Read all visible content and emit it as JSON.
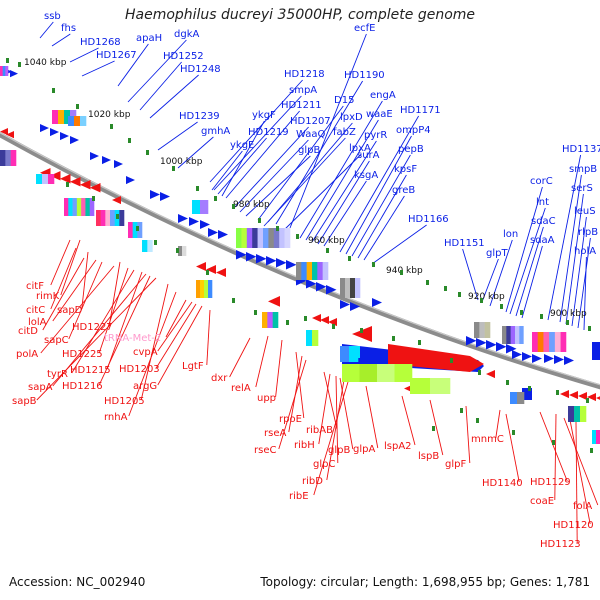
{
  "title": "Haemophilus ducreyi 35000HP, complete genome",
  "footer": {
    "accession": "Accession: NC_002940",
    "topology": "Topology: circular; Length: 1,698,955 bp; Genes: 1,781"
  },
  "colors": {
    "forward": "#0a1fe6",
    "reverse": "#ef1212",
    "backbone": "#888888",
    "tick": "#2a8a2a",
    "trna": "#ff99cc"
  },
  "kbp_ticks": [
    "1040 kbp",
    "1020 kbp",
    "1000 kbp",
    "980 kbp",
    "960 kbp",
    "940 kbp",
    "920 kbp",
    "900 kbp"
  ],
  "forward_labels": [
    "ssb",
    "fhs",
    "HD1268",
    "HD1267",
    "apaH",
    "dgkA",
    "HD1252",
    "HD1248",
    "HD1239",
    "gmhA",
    "HD1218",
    "smpA",
    "ykgF",
    "HD1211",
    "HD1219",
    "ykgE",
    "HD1207",
    "WaaQ",
    "glpB",
    "ecfE",
    "HD1190",
    "D15",
    "lpxD",
    "fabZ",
    "lpxA",
    "engA",
    "waaE",
    "pyrR",
    "surA",
    "ksgA",
    "HD1171",
    "ompP4",
    "pepB",
    "kpsF",
    "greB",
    "HD1166",
    "HD1151",
    "glpT",
    "lon",
    "corC",
    "lnt",
    "sdaC",
    "sdaA",
    "HD1137",
    "smpB",
    "serS",
    "leuS",
    "rlpB",
    "holA"
  ],
  "reverse_labels": [
    "citF",
    "rimK",
    "citC",
    "sapD",
    "citD",
    "lolA",
    "sapC",
    "HD1227",
    "polA",
    "HD1225",
    "tyrR",
    "HD1215",
    "sapA",
    "HD1216",
    "sapB",
    "HD1205",
    "rnhA",
    "tRNA-Met-2",
    "cvpA",
    "HD1203",
    "argG",
    "LgtF",
    "dxr",
    "relA",
    "upp",
    "rpoE",
    "rseA",
    "rseC",
    "ribAB",
    "ribH",
    "glpC",
    "glpB",
    "ribD",
    "ribE",
    "glpA",
    "lspA2",
    "lspB",
    "glpF",
    "mnmC",
    "HD1140",
    "HD1129",
    "coaE",
    "folA",
    "HD1120",
    "HD1123"
  ]
}
